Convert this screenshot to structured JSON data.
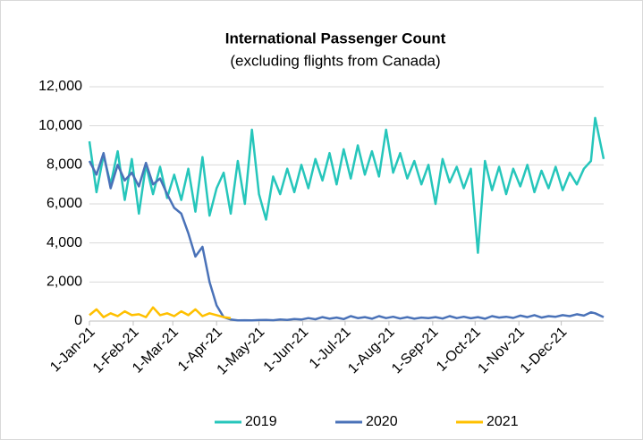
{
  "chart_data": {
    "type": "line",
    "title": "International Passenger Count",
    "subtitle": "(excluding flights from Canada)",
    "xlim": [
      0,
      364
    ],
    "xticks": [
      {
        "value": 0,
        "label": "1-Jan-21"
      },
      {
        "value": 31,
        "label": "1-Feb-21"
      },
      {
        "value": 59,
        "label": "1-Mar-21"
      },
      {
        "value": 90,
        "label": "1-Apr-21"
      },
      {
        "value": 120,
        "label": "1-May-21"
      },
      {
        "value": 151,
        "label": "1-Jun-21"
      },
      {
        "value": 181,
        "label": "1-Jul-21"
      },
      {
        "value": 212,
        "label": "1-Aug-21"
      },
      {
        "value": 243,
        "label": "1-Sep-21"
      },
      {
        "value": 273,
        "label": "1-Oct-21"
      },
      {
        "value": 304,
        "label": "1-Nov-21"
      },
      {
        "value": 334,
        "label": "1-Dec-21"
      }
    ],
    "ylim": [
      0,
      12000
    ],
    "yticks": [
      0,
      {
        "value": 2000,
        "label": "2,000"
      },
      {
        "value": 4000,
        "label": "4,000"
      },
      {
        "value": 6000,
        "label": "6,000"
      },
      {
        "value": 8000,
        "label": "8,000"
      },
      {
        "value": 10000,
        "label": "10,000"
      },
      {
        "value": 12000,
        "label": "12,000"
      }
    ],
    "grid": true,
    "legend": "bottom",
    "series": [
      {
        "name": "2019",
        "color": "#26c6bb",
        "x": [
          0,
          5,
          10,
          15,
          20,
          25,
          30,
          35,
          40,
          45,
          50,
          55,
          60,
          65,
          70,
          75,
          80,
          85,
          90,
          95,
          100,
          105,
          110,
          115,
          120,
          125,
          130,
          135,
          140,
          145,
          150,
          155,
          160,
          165,
          170,
          175,
          180,
          185,
          190,
          195,
          200,
          205,
          210,
          215,
          220,
          225,
          230,
          235,
          240,
          245,
          250,
          255,
          260,
          265,
          270,
          275,
          280,
          285,
          290,
          295,
          300,
          305,
          310,
          315,
          320,
          325,
          330,
          335,
          340,
          345,
          350,
          355,
          358,
          364
        ],
        "values": [
          9200,
          6600,
          8500,
          7000,
          8700,
          6200,
          8300,
          5500,
          8000,
          6500,
          7900,
          6300,
          7500,
          6200,
          7800,
          5600,
          8400,
          5400,
          6800,
          7600,
          5500,
          8200,
          6000,
          9800,
          6500,
          5200,
          7400,
          6500,
          7800,
          6600,
          8000,
          6800,
          8300,
          7200,
          8600,
          7000,
          8800,
          7300,
          9000,
          7500,
          8700,
          7400,
          9800,
          7600,
          8600,
          7300,
          8200,
          7000,
          8000,
          6000,
          8300,
          7100,
          7900,
          6800,
          7800,
          3500,
          8200,
          6700,
          7900,
          6500,
          7800,
          6900,
          8000,
          6600,
          7700,
          6800,
          7900,
          6700,
          7600,
          7000,
          7800,
          8200,
          10400,
          8300
        ]
      },
      {
        "name": "2020",
        "color": "#4a72b8",
        "x": [
          0,
          5,
          10,
          15,
          20,
          25,
          30,
          35,
          40,
          45,
          50,
          55,
          60,
          65,
          70,
          75,
          80,
          85,
          90,
          95,
          100,
          105,
          110,
          115,
          120,
          125,
          130,
          135,
          140,
          145,
          150,
          155,
          160,
          165,
          170,
          175,
          180,
          185,
          190,
          195,
          200,
          205,
          210,
          215,
          220,
          225,
          230,
          235,
          240,
          245,
          250,
          255,
          260,
          265,
          270,
          275,
          280,
          285,
          290,
          295,
          300,
          305,
          310,
          315,
          320,
          325,
          330,
          335,
          340,
          345,
          350,
          355,
          358,
          364
        ],
        "values": [
          8200,
          7500,
          8600,
          6800,
          8000,
          7200,
          7600,
          6900,
          8100,
          7000,
          7300,
          6500,
          5800,
          5500,
          4500,
          3300,
          3800,
          2000,
          800,
          200,
          80,
          30,
          40,
          30,
          50,
          60,
          40,
          80,
          60,
          100,
          80,
          150,
          90,
          200,
          120,
          180,
          100,
          250,
          150,
          200,
          120,
          250,
          150,
          220,
          130,
          200,
          120,
          180,
          150,
          200,
          130,
          250,
          150,
          220,
          140,
          200,
          120,
          250,
          180,
          220,
          160,
          280,
          200,
          300,
          180,
          250,
          220,
          300,
          250,
          350,
          280,
          450,
          400,
          200
        ]
      },
      {
        "name": "2021",
        "color": "#ffc000",
        "x": [
          0,
          5,
          10,
          15,
          20,
          25,
          30,
          35,
          40,
          45,
          50,
          55,
          60,
          65,
          70,
          75,
          80,
          85,
          90,
          95,
          100
        ],
        "values": [
          300,
          600,
          200,
          400,
          250,
          500,
          300,
          350,
          200,
          700,
          300,
          400,
          250,
          500,
          300,
          600,
          250,
          400,
          300,
          200,
          150
        ]
      }
    ]
  }
}
